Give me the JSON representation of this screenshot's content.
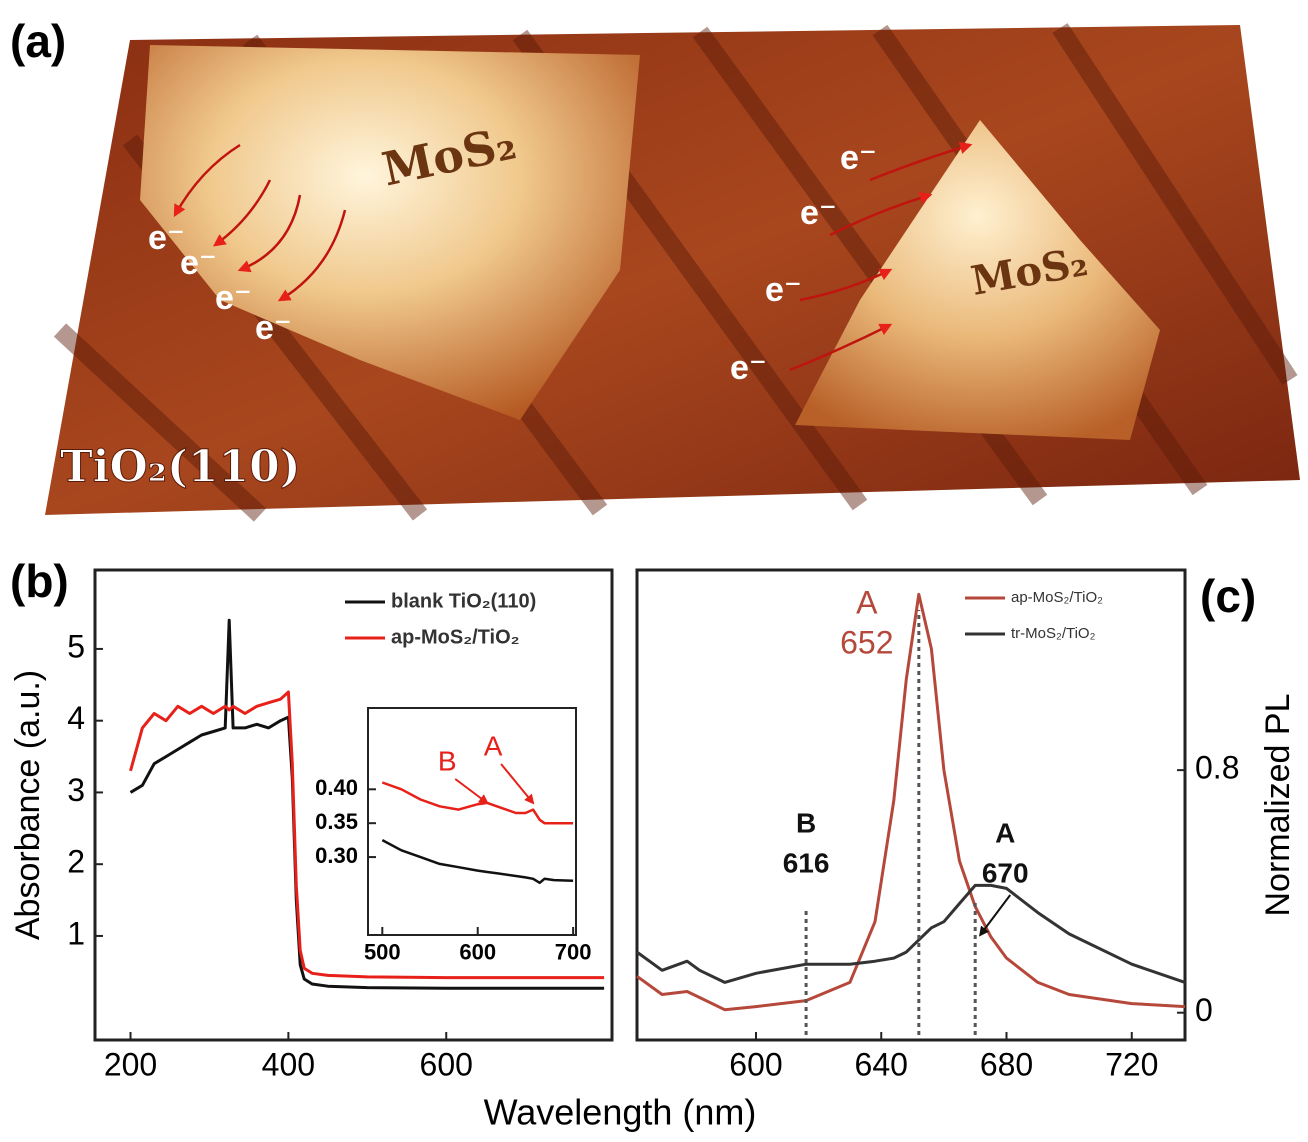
{
  "panel_a": {
    "label": "(a)",
    "layer_labels": [
      "MoS₂",
      "MoS₂"
    ],
    "substrate_label": "TiO₂(110)",
    "electron_labels": [
      "e⁻",
      "e⁻",
      "e⁻",
      "e⁻",
      "e⁻",
      "e⁻",
      "e⁻",
      "e⁻"
    ]
  },
  "chart_data": [
    {
      "type": "line",
      "label": "(b)",
      "ylabel": "Absorbance (a.u.)",
      "xlabel": "Wavelength (nm)",
      "x": [
        200,
        215,
        230,
        245,
        260,
        275,
        290,
        305,
        320,
        325,
        330,
        345,
        360,
        375,
        390,
        400,
        405,
        410,
        415,
        420,
        430,
        450,
        500,
        600,
        700,
        800
      ],
      "series": [
        {
          "name": "blank TiO₂(110)",
          "color": "#111111",
          "values": [
            3.0,
            3.1,
            3.4,
            3.5,
            3.6,
            3.7,
            3.8,
            3.85,
            3.9,
            5.4,
            3.9,
            3.9,
            3.95,
            3.9,
            4.0,
            4.05,
            3.2,
            1.5,
            0.6,
            0.4,
            0.33,
            0.3,
            0.28,
            0.27,
            0.27,
            0.27
          ]
        },
        {
          "name": "ap-MoS₂/TiO₂",
          "color": "#e8201a",
          "values": [
            3.3,
            3.9,
            4.1,
            4.0,
            4.2,
            4.1,
            4.2,
            4.1,
            4.2,
            4.15,
            4.2,
            4.1,
            4.2,
            4.25,
            4.3,
            4.4,
            3.4,
            1.7,
            0.8,
            0.55,
            0.48,
            0.45,
            0.43,
            0.42,
            0.42,
            0.42
          ]
        }
      ],
      "xlim": [
        155,
        810
      ],
      "ylim": [
        -0.45,
        6.1
      ],
      "xticks": [
        200,
        400,
        600
      ],
      "yticks": [
        1,
        2,
        3,
        4,
        5
      ],
      "legend": "upper right"
    },
    {
      "type": "line",
      "x": [
        500,
        520,
        540,
        560,
        580,
        600,
        610,
        620,
        640,
        650,
        658,
        665,
        670,
        680,
        700
      ],
      "series": [
        {
          "color": "#e8201a",
          "values": [
            0.41,
            0.4,
            0.385,
            0.375,
            0.37,
            0.378,
            0.38,
            0.375,
            0.365,
            0.365,
            0.37,
            0.355,
            0.35,
            0.35,
            0.35
          ]
        },
        {
          "color": "#111111",
          "values": [
            0.325,
            0.31,
            0.3,
            0.29,
            0.285,
            0.28,
            0.278,
            0.276,
            0.272,
            0.27,
            0.268,
            0.262,
            0.268,
            0.266,
            0.265
          ]
        }
      ],
      "annotations": [
        {
          "text": "B",
          "x": 610,
          "color": "#e8201a"
        },
        {
          "text": "A",
          "x": 658,
          "color": "#e8201a"
        }
      ],
      "xlim": [
        485,
        703
      ],
      "ylim": [
        0.185,
        0.52
      ],
      "xticks": [
        500,
        600,
        700
      ],
      "yticks": [
        {
          "value": 0.3,
          "label": "0.30"
        },
        {
          "value": 0.35,
          "label": "0.35"
        },
        {
          "value": 0.4,
          "label": "0.40"
        }
      ]
    },
    {
      "type": "line",
      "label": "(c)",
      "ylabel": "Normalized PL",
      "yaxis_side": "right",
      "x": [
        562,
        570,
        578,
        582,
        590,
        600,
        616,
        630,
        638,
        644,
        648,
        652,
        656,
        660,
        665,
        670,
        675,
        680,
        690,
        700,
        720,
        737
      ],
      "series": [
        {
          "name": "ap-MoS₂/TiO₂",
          "color": "#b5483a",
          "values": [
            0.12,
            0.06,
            0.07,
            0.05,
            0.01,
            0.02,
            0.04,
            0.1,
            0.3,
            0.7,
            1.1,
            1.38,
            1.2,
            0.8,
            0.5,
            0.35,
            0.25,
            0.18,
            0.1,
            0.06,
            0.03,
            0.02
          ]
        },
        {
          "name": "tr-MoS₂/TiO₂",
          "color": "#333333",
          "values": [
            0.2,
            0.14,
            0.17,
            0.14,
            0.1,
            0.13,
            0.16,
            0.16,
            0.17,
            0.18,
            0.2,
            0.24,
            0.28,
            0.3,
            0.36,
            0.42,
            0.42,
            0.41,
            0.33,
            0.26,
            0.16,
            0.1
          ]
        }
      ],
      "annotations": [
        {
          "text": "A",
          "x": 652,
          "color": "#b5483a"
        },
        {
          "text": "B",
          "x": 616,
          "color": "#111111"
        },
        {
          "text": "A",
          "x": 670,
          "color": "#111111"
        }
      ],
      "xlim": [
        562,
        737
      ],
      "ylim": [
        -0.09,
        1.46
      ],
      "xticks": [
        600,
        640,
        680,
        720
      ],
      "yticks": [
        0,
        0.8
      ],
      "legend": "upper right"
    }
  ]
}
